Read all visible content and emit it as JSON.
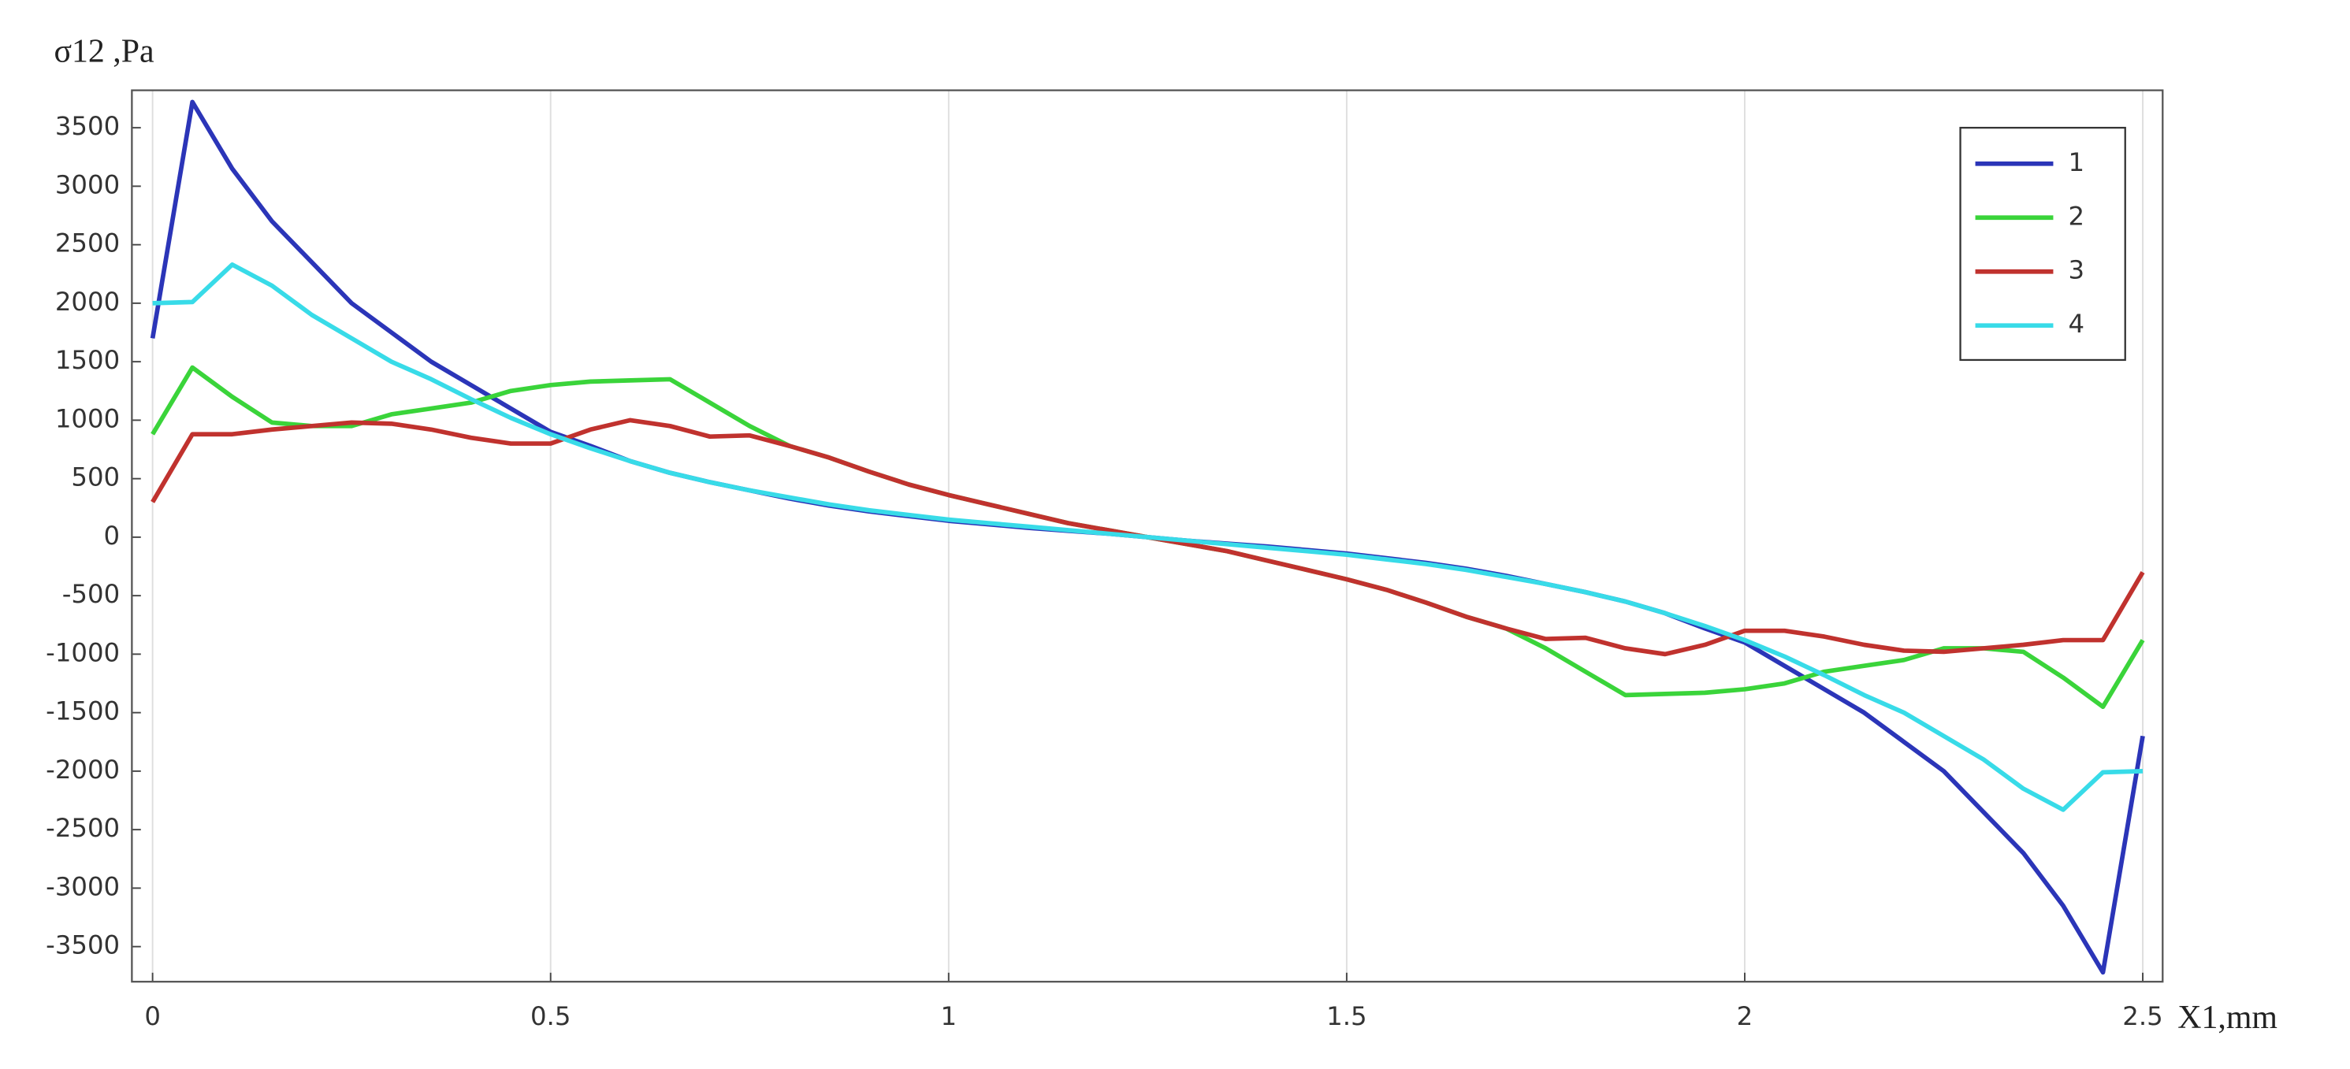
{
  "chart_data": {
    "type": "line",
    "y_label": "σ12 ,Pa",
    "x_label": "X1,mm",
    "x": [
      0,
      0.05,
      0.1,
      0.15,
      0.2,
      0.25,
      0.3,
      0.35,
      0.4,
      0.45,
      0.5,
      0.55,
      0.6,
      0.65,
      0.7,
      0.75,
      0.8,
      0.85,
      0.9,
      0.95,
      1,
      1.05,
      1.1,
      1.15,
      1.2,
      1.25,
      1.3,
      1.35,
      1.4,
      1.45,
      1.5,
      1.55,
      1.6,
      1.65,
      1.7,
      1.75,
      1.8,
      1.85,
      1.9,
      1.95,
      2,
      2.05,
      2.1,
      2.15,
      2.2,
      2.25,
      2.3,
      2.35,
      2.4,
      2.45,
      2.5
    ],
    "series": [
      {
        "name": "1",
        "color": "#2b35b8",
        "values": [
          1700,
          3720,
          3150,
          2700,
          2350,
          2000,
          1750,
          1500,
          1300,
          1100,
          900,
          780,
          650,
          550,
          470,
          400,
          330,
          270,
          220,
          180,
          140,
          110,
          80,
          55,
          30,
          0,
          -30,
          -55,
          -80,
          -110,
          -140,
          -180,
          -220,
          -270,
          -330,
          -400,
          -470,
          -550,
          -650,
          -780,
          -900,
          -1100,
          -1300,
          -1500,
          -1750,
          -2000,
          -2350,
          -2700,
          -3150,
          -3720,
          -1700
        ]
      },
      {
        "name": "2",
        "color": "#3ad43a",
        "values": [
          880,
          1450,
          1200,
          980,
          950,
          950,
          1050,
          1100,
          1150,
          1250,
          1300,
          1330,
          1340,
          1350,
          1150,
          950,
          780,
          680,
          560,
          450,
          360,
          280,
          200,
          120,
          60,
          0,
          -60,
          -120,
          -200,
          -280,
          -360,
          -450,
          -560,
          -680,
          -780,
          -950,
          -1150,
          -1350,
          -1340,
          -1330,
          -1300,
          -1250,
          -1150,
          -1100,
          -1050,
          -950,
          -950,
          -980,
          -1200,
          -1450,
          -880
        ]
      },
      {
        "name": "3",
        "color": "#c0322e",
        "values": [
          300,
          880,
          880,
          920,
          950,
          980,
          970,
          920,
          850,
          800,
          800,
          920,
          1000,
          950,
          860,
          870,
          780,
          680,
          560,
          450,
          360,
          280,
          200,
          120,
          60,
          0,
          -60,
          -120,
          -200,
          -280,
          -360,
          -450,
          -560,
          -680,
          -780,
          -870,
          -860,
          -950,
          -1000,
          -920,
          -800,
          -800,
          -850,
          -920,
          -970,
          -980,
          -950,
          -920,
          -880,
          -880,
          -300
        ]
      },
      {
        "name": "4",
        "color": "#38dbe8",
        "values": [
          2000,
          2010,
          2330,
          2150,
          1900,
          1700,
          1500,
          1350,
          1180,
          1020,
          880,
          760,
          650,
          550,
          470,
          400,
          340,
          280,
          230,
          190,
          150,
          120,
          90,
          60,
          30,
          0,
          -30,
          -60,
          -90,
          -120,
          -150,
          -190,
          -230,
          -280,
          -340,
          -400,
          -470,
          -550,
          -650,
          -760,
          -880,
          -1020,
          -1180,
          -1350,
          -1500,
          -1700,
          -1900,
          -2150,
          -2330,
          -2010,
          -2000
        ]
      }
    ],
    "xlim": [
      -0.026,
      2.525
    ],
    "ylim": [
      -3800,
      3820
    ],
    "xticks": [
      0,
      0.5,
      1,
      1.5,
      2,
      2.5
    ],
    "yticks": [
      -3500,
      -3000,
      -2500,
      -2000,
      -1500,
      -1000,
      -500,
      0,
      500,
      1000,
      1500,
      2000,
      2500,
      3000,
      3500
    ],
    "x_grid": true,
    "legend": "upper right"
  }
}
